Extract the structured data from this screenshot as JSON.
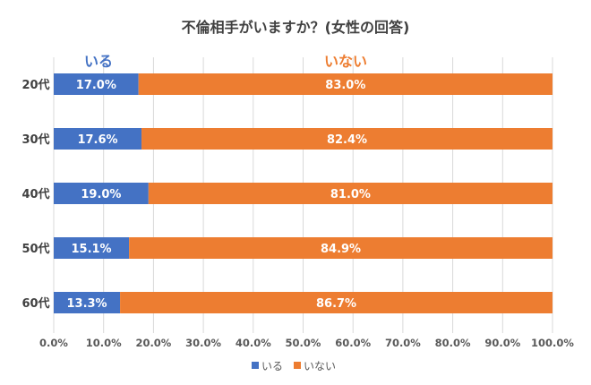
{
  "chart_data": {
    "type": "bar",
    "orientation": "horizontal",
    "stacked": "100%",
    "title": "不倫相手がいますか？(女性の回答)",
    "categories": [
      "20代",
      "30代",
      "40代",
      "50代",
      "60代"
    ],
    "series": [
      {
        "name": "いる",
        "color": "#4472C4",
        "values": [
          17.0,
          17.6,
          19.0,
          15.1,
          13.3
        ],
        "labels": [
          "17.0%",
          "17.6%",
          "19.0%",
          "15.1%",
          "13.3%"
        ]
      },
      {
        "name": "いない",
        "color": "#ED7D31",
        "values": [
          83.0,
          82.4,
          81.0,
          84.9,
          86.7
        ],
        "labels": [
          "83.0%",
          "82.4%",
          "81.0%",
          "84.9%",
          "86.7%"
        ]
      }
    ],
    "xlim": [
      0,
      100
    ],
    "xticks": [
      "0.0%",
      "10.0%",
      "20.0%",
      "30.0%",
      "40.0%",
      "50.0%",
      "60.0%",
      "70.0%",
      "80.0%",
      "90.0%",
      "100.0%"
    ],
    "grid": true,
    "legend": "bottom"
  }
}
